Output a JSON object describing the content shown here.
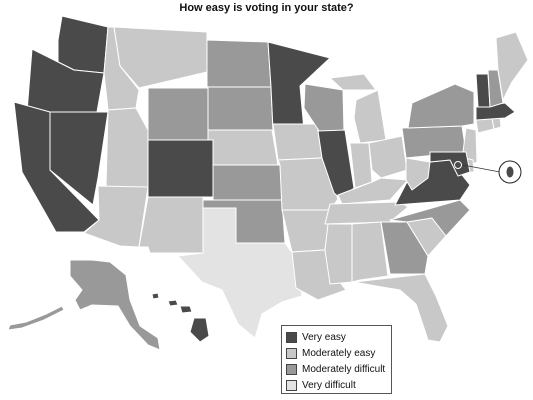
{
  "title": "How easy is voting in your state?",
  "categories": {
    "very_easy": {
      "label": "Very easy",
      "color": "#4a4a4a"
    },
    "moderately_easy": {
      "label": "Moderately easy",
      "color": "#c8c8c8"
    },
    "moderately_difficult": {
      "label": "Moderately difficult",
      "color": "#999999"
    },
    "very_difficult": {
      "label": "Very difficult",
      "color": "#e3e3e3"
    }
  },
  "states": {
    "WA": "very_easy",
    "OR": "very_easy",
    "CA": "very_easy",
    "NV": "very_easy",
    "CO": "very_easy",
    "MN": "very_easy",
    "IL": "very_easy",
    "VA": "very_easy",
    "MD": "very_easy",
    "VT": "very_easy",
    "MA": "very_easy",
    "HI": "very_easy",
    "DC": "very_easy",
    "ID": "moderately_easy",
    "MT": "moderately_easy",
    "UT": "moderately_easy",
    "NM": "moderately_easy",
    "NE": "moderately_easy",
    "IA": "moderately_easy",
    "MO": "moderately_easy",
    "AR": "moderately_easy",
    "LA": "moderately_easy",
    "MS": "moderately_easy",
    "AL": "moderately_easy",
    "TN": "moderately_easy",
    "KY": "moderately_easy",
    "OH": "moderately_easy",
    "MI": "moderately_easy",
    "IN": "moderately_easy",
    "WV": "moderately_easy",
    "SC": "moderately_easy",
    "FL": "moderately_easy",
    "ME": "moderately_easy",
    "NJ": "moderately_easy",
    "DE": "moderately_easy",
    "CT": "moderately_easy",
    "RI": "moderately_easy",
    "AZ": "moderately_easy",
    "WY": "moderately_difficult",
    "ND": "moderately_difficult",
    "SD": "moderately_difficult",
    "KS": "moderately_difficult",
    "OK": "moderately_difficult",
    "WI": "moderately_difficult",
    "NC": "moderately_difficult",
    "GA": "moderately_difficult",
    "PA": "moderately_difficult",
    "NY": "moderately_difficult",
    "NH": "moderately_difficult",
    "AK": "moderately_difficult",
    "TX": "very_difficult"
  }
}
